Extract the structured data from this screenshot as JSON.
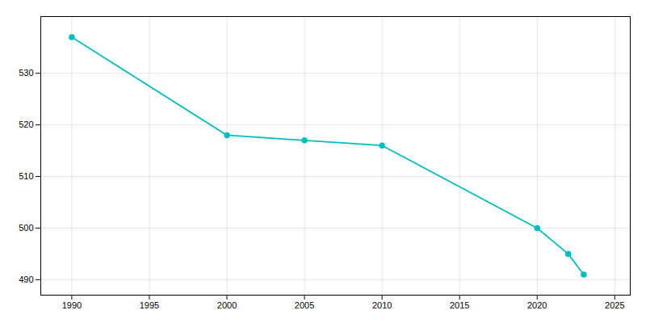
{
  "chart_data": {
    "type": "line",
    "x": [
      1990,
      2000,
      2005,
      2010,
      2020,
      2022,
      2023
    ],
    "values": [
      537,
      518,
      517,
      516,
      500,
      495,
      491
    ],
    "color": "#00BEBE",
    "marker": "circle",
    "xlim": [
      1988,
      2026
    ],
    "ylim": [
      487,
      541
    ],
    "xticks": [
      1990,
      1995,
      2000,
      2005,
      2010,
      2015,
      2020,
      2025
    ],
    "yticks": [
      490,
      500,
      510,
      520,
      530
    ],
    "grid": true
  }
}
